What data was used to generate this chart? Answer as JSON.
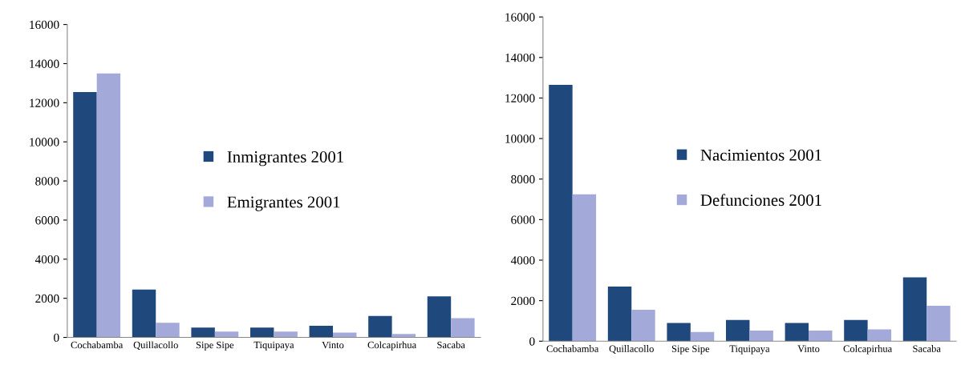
{
  "chart_data": [
    {
      "type": "bar",
      "categories": [
        "Cochabamba",
        "Quillacollo",
        "Sipe Sipe",
        "Tiquipaya",
        "Vinto",
        "Colcapirhua",
        "Sacaba"
      ],
      "series": [
        {
          "name": "Inmigrantes 2001",
          "color": "#1f497d",
          "values": [
            12550,
            2450,
            500,
            500,
            600,
            1100,
            2100
          ]
        },
        {
          "name": "Emigrantes 2001",
          "color": "#a3aad9",
          "values": [
            13500,
            750,
            300,
            300,
            250,
            180,
            980
          ]
        }
      ],
      "ylim": [
        0,
        16000
      ],
      "yticks": [
        0,
        2000,
        4000,
        6000,
        8000,
        10000,
        12000,
        14000,
        16000
      ],
      "grid": false,
      "legend": "center"
    },
    {
      "type": "bar",
      "categories": [
        "Cochabamba",
        "Quillacollo",
        "Sipe Sipe",
        "Tiquipaya",
        "Vinto",
        "Colcapirhua",
        "Sacaba"
      ],
      "series": [
        {
          "name": "Nacimientos 2001",
          "color": "#1f497d",
          "values": [
            12650,
            2700,
            900,
            1050,
            900,
            1050,
            3150
          ]
        },
        {
          "name": "Defunciones 2001",
          "color": "#a3aad9",
          "values": [
            7250,
            1550,
            450,
            520,
            520,
            580,
            1750
          ]
        }
      ],
      "ylim": [
        0,
        16000
      ],
      "yticks": [
        0,
        2000,
        4000,
        6000,
        8000,
        10000,
        12000,
        14000,
        16000
      ],
      "grid": false,
      "legend": "center"
    }
  ]
}
